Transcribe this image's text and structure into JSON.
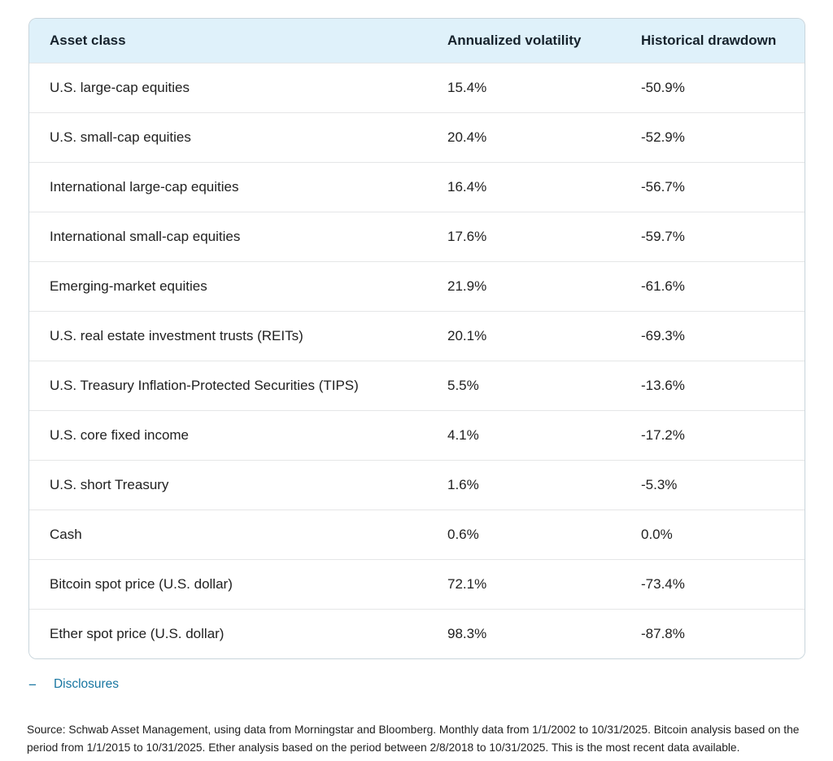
{
  "chart_data": {
    "type": "table",
    "columns": [
      "Asset class",
      "Annualized volatility",
      "Historical drawdown"
    ],
    "rows": [
      [
        "U.S. large-cap equities",
        "15.4%",
        "-50.9%"
      ],
      [
        "U.S. small-cap equities",
        "20.4%",
        "-52.9%"
      ],
      [
        "International large-cap equities",
        "16.4%",
        "-56.7%"
      ],
      [
        "International small-cap equities",
        "17.6%",
        "-59.7%"
      ],
      [
        "Emerging-market equities",
        "21.9%",
        "-61.6%"
      ],
      [
        "U.S. real estate investment trusts (REITs)",
        "20.1%",
        "-69.3%"
      ],
      [
        "U.S. Treasury Inflation-Protected Securities (TIPS)",
        "5.5%",
        "-13.6%"
      ],
      [
        "U.S. core fixed income",
        "4.1%",
        "-17.2%"
      ],
      [
        "U.S. short Treasury",
        "1.6%",
        "-5.3%"
      ],
      [
        "Cash",
        "0.6%",
        "0.0%"
      ],
      [
        "Bitcoin spot price (U.S. dollar)",
        "72.1%",
        "-73.4%"
      ],
      [
        "Ether spot price (U.S. dollar)",
        "98.3%",
        "-87.8%"
      ]
    ]
  },
  "disclosures": {
    "toggle_icon": "−",
    "label": "Disclosures"
  },
  "footnote": {
    "source": "Source: Schwab Asset Management, using data from Morningstar and Bloomberg. Monthly data from 1/1/2002 to 10/31/2025. Bitcoin analysis based on the period from 1/1/2015 to 10/31/2025. Ether analysis based on the period between 2/8/2018 to 10/31/2025. This is the most recent data available."
  },
  "colors": {
    "header_bg": "#dff1fa",
    "link": "#1876a1",
    "card_border": "#c9d5dc",
    "row_divider": "#e5e6e7",
    "text": "#1f1f1f"
  }
}
